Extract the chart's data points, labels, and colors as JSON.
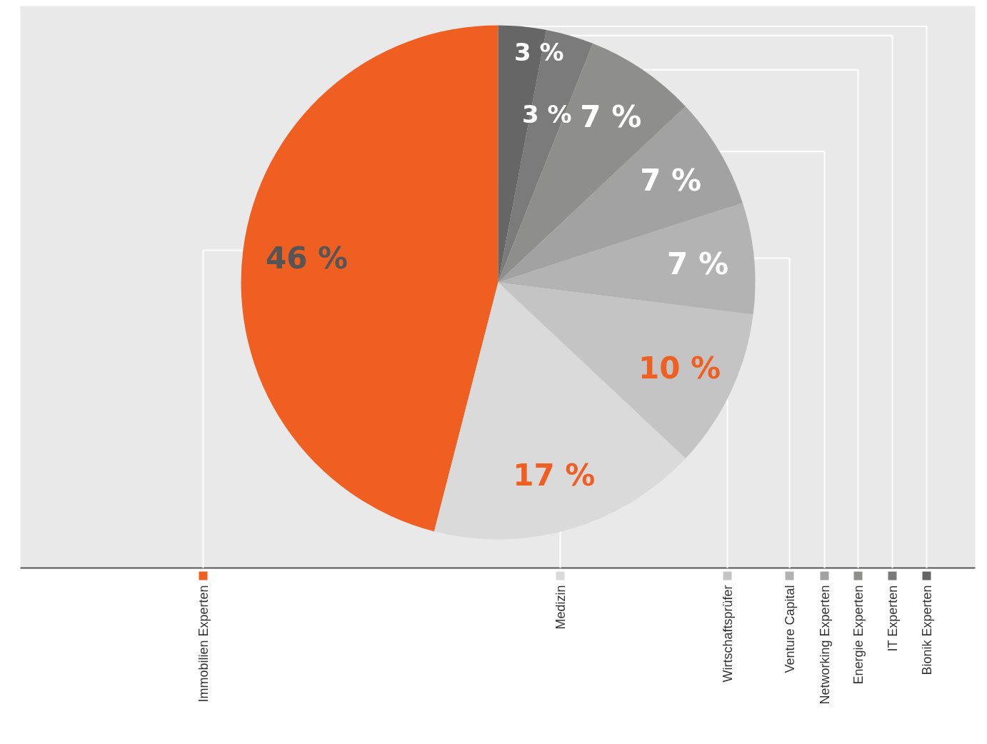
{
  "chart_data": {
    "type": "pie",
    "categories": [
      "Immobilien Experten",
      "Medizin",
      "Wirtschaftsprüfer",
      "Venture Capital",
      "Networking Experten",
      "Energie Experten",
      "IT Experten",
      "Bionik Experten"
    ],
    "values": [
      46,
      17,
      10,
      7,
      7,
      7,
      3,
      3
    ],
    "colors": [
      "#f05f22",
      "#dadada",
      "#c4c4c4",
      "#b3b3b3",
      "#a2a2a2",
      "#8e8f8d",
      "#7b7b7b",
      "#666666"
    ],
    "legend": "bottom",
    "value_labels": [
      "46 %",
      "17 %",
      "10 %",
      "7 %",
      "7 %",
      "7 %",
      "3 %",
      "3 %"
    ]
  }
}
